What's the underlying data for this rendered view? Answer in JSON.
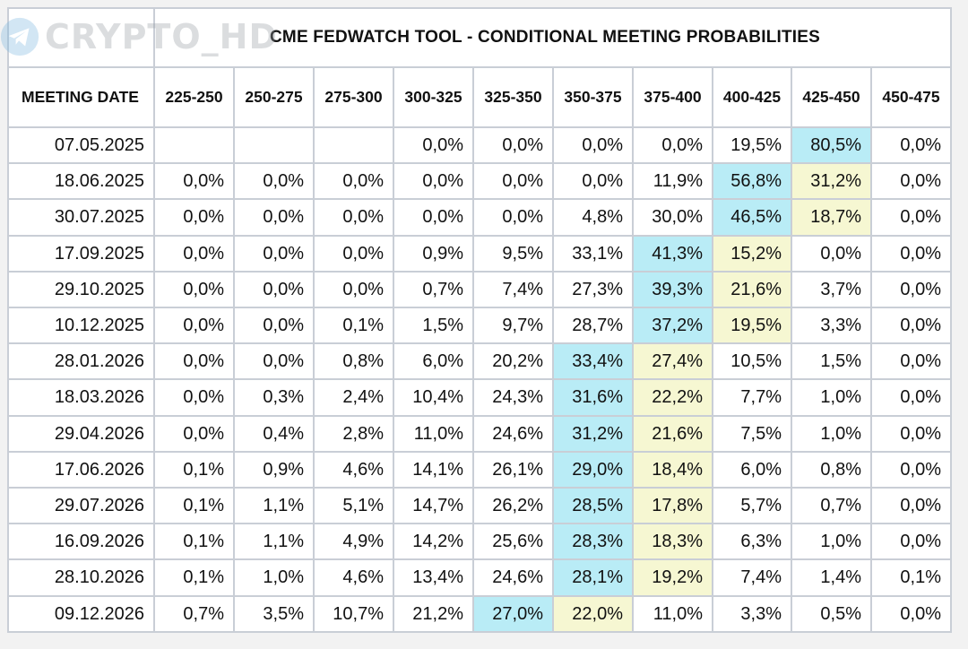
{
  "watermark": {
    "text": "CRYPTO_HD",
    "icon": "telegram-plane-icon"
  },
  "title": "CME FEDWATCH TOOL - CONDITIONAL MEETING PROBABILITIES",
  "colors": {
    "highlight_max": "#b9ecf6",
    "highlight_second": "#f6f7d2",
    "grid": "#c9ced6"
  },
  "chart_data": {
    "type": "table",
    "title": "CME FEDWATCH TOOL - CONDITIONAL MEETING PROBABILITIES",
    "columns": [
      "MEETING DATE",
      "225-250",
      "250-275",
      "275-300",
      "300-325",
      "325-350",
      "350-375",
      "375-400",
      "400-425",
      "425-450",
      "450-475"
    ],
    "rows": [
      {
        "date": "07.05.2025",
        "values": [
          "",
          "",
          "",
          "0,0%",
          "0,0%",
          "0,0%",
          "0,0%",
          "19,5%",
          "80,5%",
          "0,0%"
        ],
        "blue": 8,
        "yellow": -1
      },
      {
        "date": "18.06.2025",
        "values": [
          "0,0%",
          "0,0%",
          "0,0%",
          "0,0%",
          "0,0%",
          "0,0%",
          "11,9%",
          "56,8%",
          "31,2%",
          "0,0%"
        ],
        "blue": 7,
        "yellow": 8
      },
      {
        "date": "30.07.2025",
        "values": [
          "0,0%",
          "0,0%",
          "0,0%",
          "0,0%",
          "0,0%",
          "4,8%",
          "30,0%",
          "46,5%",
          "18,7%",
          "0,0%"
        ],
        "blue": 7,
        "yellow": 8
      },
      {
        "date": "17.09.2025",
        "values": [
          "0,0%",
          "0,0%",
          "0,0%",
          "0,9%",
          "9,5%",
          "33,1%",
          "41,3%",
          "15,2%",
          "0,0%",
          "0,0%"
        ],
        "blue": 6,
        "yellow": 7
      },
      {
        "date": "29.10.2025",
        "values": [
          "0,0%",
          "0,0%",
          "0,0%",
          "0,7%",
          "7,4%",
          "27,3%",
          "39,3%",
          "21,6%",
          "3,7%",
          "0,0%"
        ],
        "blue": 6,
        "yellow": 7
      },
      {
        "date": "10.12.2025",
        "values": [
          "0,0%",
          "0,0%",
          "0,1%",
          "1,5%",
          "9,7%",
          "28,7%",
          "37,2%",
          "19,5%",
          "3,3%",
          "0,0%"
        ],
        "blue": 6,
        "yellow": 7
      },
      {
        "date": "28.01.2026",
        "values": [
          "0,0%",
          "0,0%",
          "0,8%",
          "6,0%",
          "20,2%",
          "33,4%",
          "27,4%",
          "10,5%",
          "1,5%",
          "0,0%"
        ],
        "blue": 5,
        "yellow": 6
      },
      {
        "date": "18.03.2026",
        "values": [
          "0,0%",
          "0,3%",
          "2,4%",
          "10,4%",
          "24,3%",
          "31,6%",
          "22,2%",
          "7,7%",
          "1,0%",
          "0,0%"
        ],
        "blue": 5,
        "yellow": 6
      },
      {
        "date": "29.04.2026",
        "values": [
          "0,0%",
          "0,4%",
          "2,8%",
          "11,0%",
          "24,6%",
          "31,2%",
          "21,6%",
          "7,5%",
          "1,0%",
          "0,0%"
        ],
        "blue": 5,
        "yellow": 6
      },
      {
        "date": "17.06.2026",
        "values": [
          "0,1%",
          "0,9%",
          "4,6%",
          "14,1%",
          "26,1%",
          "29,0%",
          "18,4%",
          "6,0%",
          "0,8%",
          "0,0%"
        ],
        "blue": 5,
        "yellow": 6
      },
      {
        "date": "29.07.2026",
        "values": [
          "0,1%",
          "1,1%",
          "5,1%",
          "14,7%",
          "26,2%",
          "28,5%",
          "17,8%",
          "5,7%",
          "0,7%",
          "0,0%"
        ],
        "blue": 5,
        "yellow": 6
      },
      {
        "date": "16.09.2026",
        "values": [
          "0,1%",
          "1,1%",
          "4,9%",
          "14,2%",
          "25,6%",
          "28,3%",
          "18,3%",
          "6,3%",
          "1,0%",
          "0,0%"
        ],
        "blue": 5,
        "yellow": 6
      },
      {
        "date": "28.10.2026",
        "values": [
          "0,1%",
          "1,0%",
          "4,6%",
          "13,4%",
          "24,6%",
          "28,1%",
          "19,2%",
          "7,4%",
          "1,4%",
          "0,1%"
        ],
        "blue": 5,
        "yellow": 6
      },
      {
        "date": "09.12.2026",
        "values": [
          "0,7%",
          "3,5%",
          "10,7%",
          "21,2%",
          "27,0%",
          "22,0%",
          "11,0%",
          "3,3%",
          "0,5%",
          "0,0%"
        ],
        "blue": 4,
        "yellow": 5
      }
    ]
  }
}
